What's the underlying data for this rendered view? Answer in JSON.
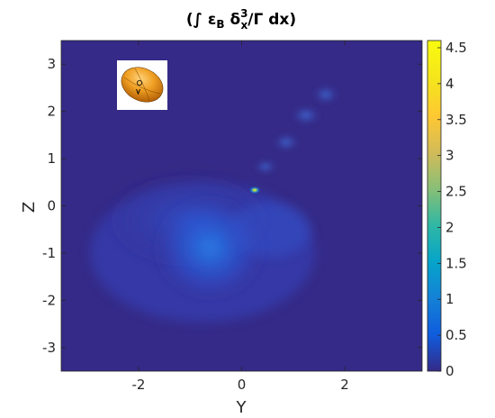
{
  "chart_data": {
    "type": "heatmap",
    "title": {
      "prefix": "(∫ ",
      "epsilon": "ε",
      "epsilon_sub": "B",
      "delta": " δ",
      "delta_sub": "x",
      "delta_sup": "3",
      "suffix": "/Γ dx)"
    },
    "xlabel": "Y",
    "ylabel": "Z",
    "xlim": [
      -3.5,
      3.5
    ],
    "ylim": [
      -3.5,
      3.5
    ],
    "xticks": [
      -2,
      0,
      2
    ],
    "xtick_labels": [
      "-2",
      "0",
      "2"
    ],
    "yticks": [
      3,
      2,
      1,
      0,
      -1,
      -2,
      -3
    ],
    "ytick_labels": [
      "3",
      "2",
      "1",
      "0",
      "-1",
      "-2",
      "-3"
    ],
    "colorbar": {
      "colormap": "parula",
      "range": [
        0,
        4.6
      ],
      "ticks": [
        0,
        0.5,
        1,
        1.5,
        2,
        2.5,
        3,
        3.5,
        4,
        4.5
      ],
      "tick_labels": [
        "0",
        "0.5",
        "1",
        "1.5",
        "2",
        "2.5",
        "3",
        "3.5",
        "4",
        "4.5"
      ]
    },
    "background_value": 0,
    "features": [
      {
        "kind": "diffuse-cloud",
        "y": -0.6,
        "z": -0.9,
        "peak": 0.9
      },
      {
        "kind": "diffuse-cloud",
        "y": -0.4,
        "z": -0.3,
        "peak": 0.45
      },
      {
        "kind": "jet",
        "y_start": 0.3,
        "z_start": 0.3,
        "y_end": 1.6,
        "z_end": 2.3,
        "peak": 0.6
      },
      {
        "kind": "bright-spot",
        "y": 0.3,
        "z": 0.3,
        "peak": 4.6
      }
    ],
    "inset": {
      "kind": "orientation-ellipsoid-icon",
      "marker": "v"
    }
  }
}
